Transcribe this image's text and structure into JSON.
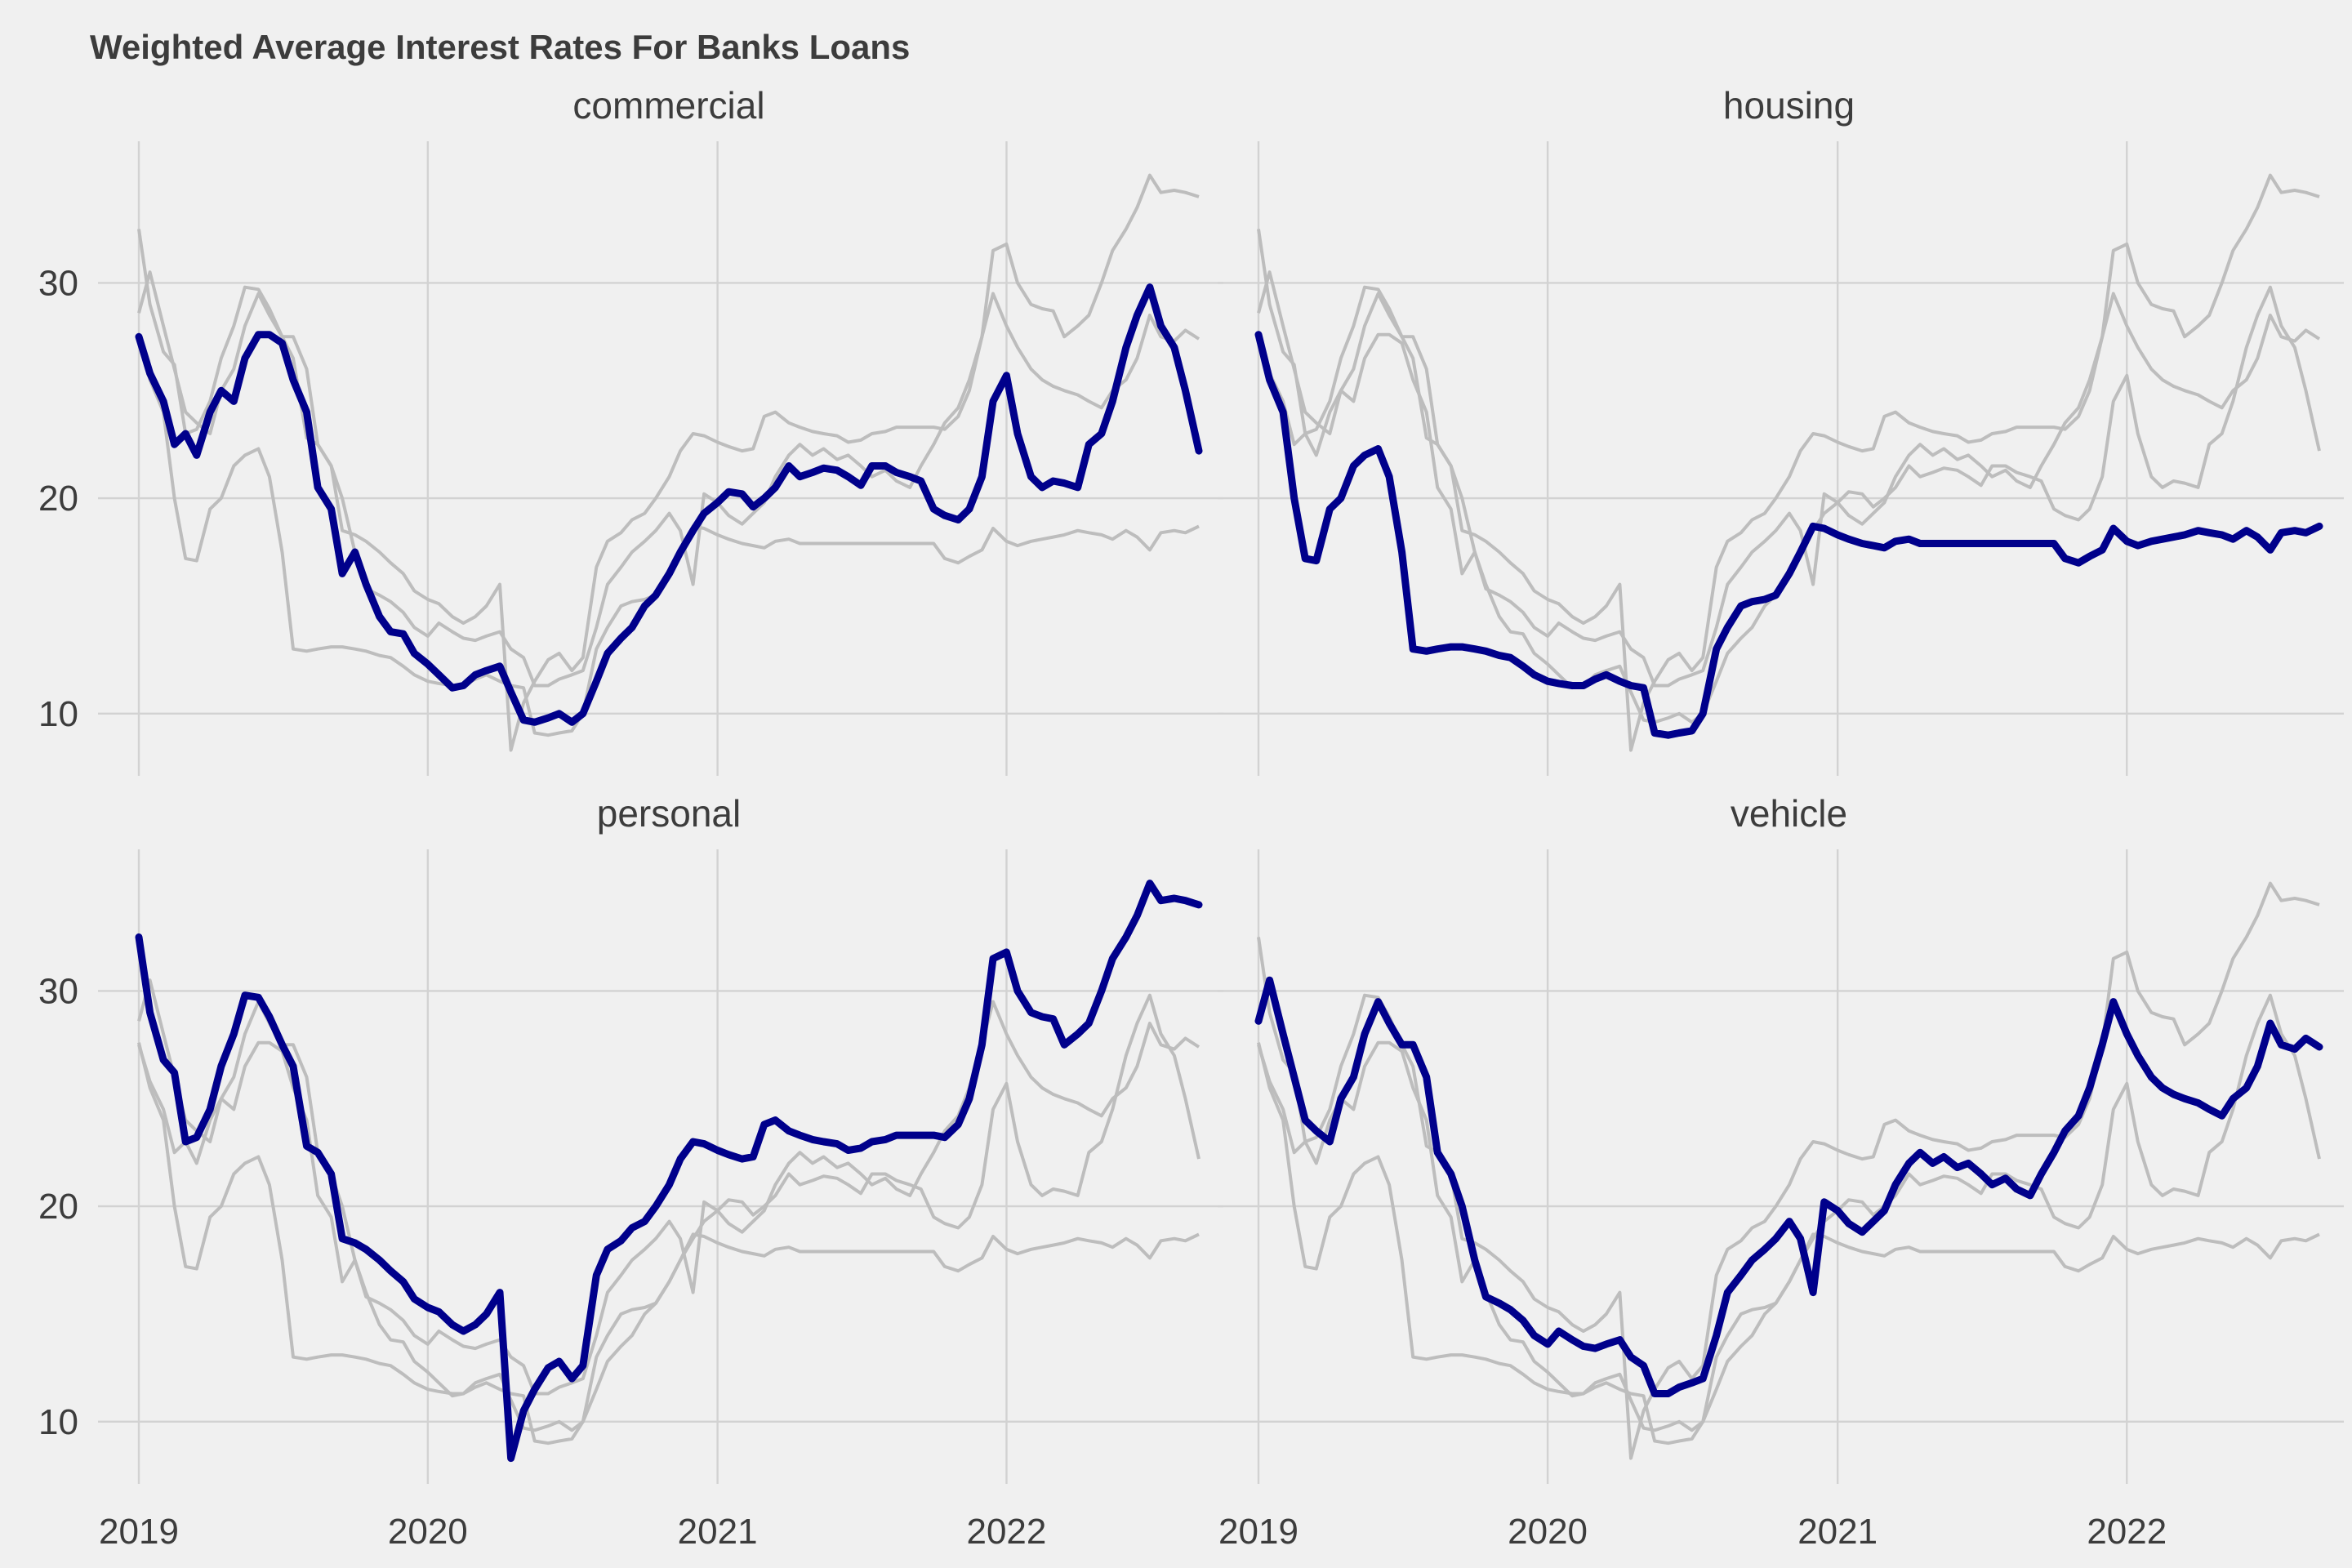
{
  "chart_data": {
    "type": "line",
    "title": "Weighted Average Interest Rates For Banks Loans",
    "xlabel": "",
    "ylabel": "",
    "x_ticks": [
      "2019",
      "2020",
      "2021",
      "2022"
    ],
    "y_ticks": [
      10,
      20,
      30
    ],
    "xlim": [
      "2019-01-01",
      "2022-09-01"
    ],
    "ylim": [
      7.3,
      36.5
    ],
    "grid": true,
    "legend": "none",
    "facets": [
      "commercial",
      "housing",
      "personal",
      "vehicle"
    ],
    "highlight_color": "#00008B",
    "background_color": "#F0F0F0",
    "context_color": "#BDBDBD",
    "x": [
      "2019-01-01",
      "2019-01-15",
      "2019-02-01",
      "2019-02-15",
      "2019-03-01",
      "2019-03-15",
      "2019-04-01",
      "2019-04-15",
      "2019-05-01",
      "2019-05-15",
      "2019-06-01",
      "2019-06-15",
      "2019-07-01",
      "2019-07-15",
      "2019-08-01",
      "2019-08-15",
      "2019-09-01",
      "2019-09-15",
      "2019-10-01",
      "2019-10-15",
      "2019-11-01",
      "2019-11-15",
      "2019-12-01",
      "2019-12-15",
      "2020-01-01",
      "2020-01-15",
      "2020-02-01",
      "2020-02-15",
      "2020-03-01",
      "2020-03-15",
      "2020-04-01",
      "2020-04-15",
      "2020-05-01",
      "2020-05-15",
      "2020-06-01",
      "2020-06-15",
      "2020-07-01",
      "2020-07-15",
      "2020-08-01",
      "2020-08-15",
      "2020-09-01",
      "2020-09-15",
      "2020-10-01",
      "2020-10-15",
      "2020-11-01",
      "2020-11-15",
      "2020-12-01",
      "2020-12-15",
      "2021-01-01",
      "2021-01-15",
      "2021-02-01",
      "2021-02-15",
      "2021-03-01",
      "2021-03-15",
      "2021-04-01",
      "2021-04-15",
      "2021-05-01",
      "2021-05-15",
      "2021-06-01",
      "2021-06-15",
      "2021-07-01",
      "2021-07-15",
      "2021-08-01",
      "2021-08-15",
      "2021-09-01",
      "2021-09-15",
      "2021-10-01",
      "2021-10-15",
      "2021-11-01",
      "2021-11-15",
      "2021-12-01",
      "2021-12-15",
      "2022-01-01",
      "2022-01-15",
      "2022-02-01",
      "2022-02-15",
      "2022-03-01",
      "2022-03-15",
      "2022-04-01",
      "2022-04-15",
      "2022-05-01",
      "2022-05-15",
      "2022-06-01",
      "2022-06-15",
      "2022-07-01",
      "2022-07-15",
      "2022-08-01",
      "2022-08-15",
      "2022-09-01"
    ],
    "series": [
      {
        "name": "commercial",
        "values": [
          27.5,
          25.8,
          24.5,
          22.5,
          23.0,
          22.0,
          24.0,
          25.0,
          24.5,
          26.5,
          27.6,
          27.6,
          27.2,
          25.5,
          24.0,
          20.5,
          19.5,
          16.5,
          17.5,
          16.0,
          14.5,
          13.8,
          13.7,
          12.8,
          12.3,
          11.8,
          11.2,
          11.3,
          11.8,
          12.0,
          12.2,
          11.0,
          9.7,
          9.6,
          9.8,
          10.0,
          9.6,
          10.0,
          11.5,
          12.8,
          13.5,
          14.0,
          15.0,
          15.5,
          16.5,
          17.5,
          18.5,
          19.3,
          19.8,
          20.3,
          20.2,
          19.6,
          20.0,
          20.5,
          21.5,
          21.0,
          21.2,
          21.4,
          21.3,
          21.0,
          20.6,
          21.5,
          21.5,
          21.2,
          21.0,
          20.8,
          19.5,
          19.2,
          19.0,
          19.5,
          21.0,
          24.5,
          25.7,
          23.0,
          21.0,
          20.5,
          20.8,
          20.7,
          20.5,
          22.5,
          23.0,
          24.5,
          27.0,
          28.5,
          29.8,
          28.0,
          27.0,
          25.0,
          22.2
        ]
      },
      {
        "name": "housing",
        "values": [
          27.6,
          25.5,
          24.0,
          20.0,
          17.2,
          17.1,
          19.5,
          20.0,
          21.5,
          22.0,
          22.3,
          21.0,
          17.5,
          13.0,
          12.9,
          13.0,
          13.1,
          13.1,
          13.0,
          12.9,
          12.7,
          12.6,
          12.2,
          11.8,
          11.5,
          11.4,
          11.3,
          11.3,
          11.6,
          11.8,
          11.5,
          11.3,
          11.2,
          9.1,
          9.0,
          9.1,
          9.2,
          10.0,
          13.0,
          14.0,
          15.0,
          15.2,
          15.3,
          15.5,
          16.5,
          17.5,
          18.7,
          18.6,
          18.3,
          18.1,
          17.9,
          17.8,
          17.7,
          18.0,
          18.1,
          17.9,
          17.9,
          17.9,
          17.9,
          17.9,
          17.9,
          17.9,
          17.9,
          17.9,
          17.9,
          17.9,
          17.9,
          17.2,
          17.0,
          17.3,
          17.6,
          18.6,
          18.0,
          17.8,
          18.0,
          18.1,
          18.2,
          18.3,
          18.5,
          18.4,
          18.3,
          18.1,
          18.5,
          18.2,
          17.6,
          18.4,
          18.5,
          18.4,
          18.7
        ]
      },
      {
        "name": "personal",
        "values": [
          32.5,
          29.0,
          26.8,
          26.2,
          23.0,
          23.2,
          24.5,
          26.5,
          28.0,
          29.8,
          29.7,
          28.8,
          27.5,
          26.5,
          22.8,
          22.5,
          21.5,
          18.5,
          18.3,
          18.0,
          17.5,
          17.0,
          16.5,
          15.7,
          15.3,
          15.1,
          14.5,
          14.2,
          14.5,
          15.0,
          16.0,
          8.3,
          10.5,
          11.5,
          12.5,
          12.8,
          12.0,
          12.6,
          16.8,
          18.0,
          18.4,
          19.0,
          19.3,
          20.0,
          21.0,
          22.2,
          23.0,
          22.9,
          22.6,
          22.4,
          22.2,
          22.3,
          23.8,
          24.0,
          23.5,
          23.3,
          23.1,
          23.0,
          22.9,
          22.6,
          22.7,
          23.0,
          23.1,
          23.3,
          23.3,
          23.3,
          23.3,
          23.2,
          23.8,
          25.0,
          27.5,
          31.5,
          31.8,
          30.0,
          29.0,
          28.8,
          28.7,
          27.5,
          28.0,
          28.5,
          30.0,
          31.5,
          32.5,
          33.5,
          35.0,
          34.2,
          34.3,
          34.2,
          34.0
        ]
      },
      {
        "name": "vehicle",
        "values": [
          28.6,
          30.5,
          28.0,
          26.0,
          24.0,
          23.5,
          23.0,
          25.0,
          26.0,
          28.0,
          29.5,
          28.5,
          27.5,
          27.5,
          26.0,
          22.5,
          21.5,
          20.0,
          17.5,
          15.8,
          15.5,
          15.2,
          14.7,
          14.0,
          13.6,
          14.2,
          13.8,
          13.5,
          13.4,
          13.6,
          13.8,
          13.0,
          12.6,
          11.3,
          11.3,
          11.6,
          11.8,
          12.0,
          14.0,
          16.0,
          16.8,
          17.5,
          18.0,
          18.5,
          19.3,
          18.5,
          16.0,
          20.2,
          19.8,
          19.2,
          18.8,
          19.3,
          19.8,
          21.0,
          22.0,
          22.5,
          22.0,
          22.3,
          21.8,
          22.0,
          21.5,
          21.0,
          21.3,
          20.8,
          20.5,
          21.5,
          22.5,
          23.5,
          24.2,
          25.5,
          27.5,
          29.5,
          28.0,
          27.0,
          26.0,
          25.5,
          25.2,
          25.0,
          24.8,
          24.5,
          24.2,
          25.0,
          25.5,
          26.5,
          28.5,
          27.5,
          27.3,
          27.8,
          27.4
        ]
      }
    ]
  }
}
